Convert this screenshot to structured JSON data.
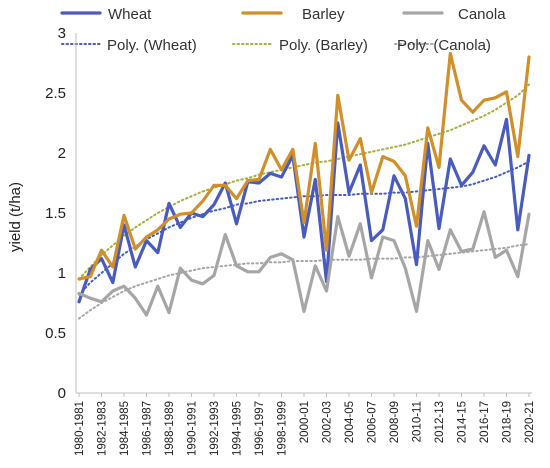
{
  "chart_data": {
    "type": "line",
    "title": "",
    "xlabel": "",
    "ylabel": "yield (t/ha)",
    "ylim": [
      0,
      3
    ],
    "yticks": [
      "0",
      "0.5",
      "1",
      "1.5",
      "2",
      "2.5",
      "3"
    ],
    "grid": false,
    "legend_position": "top",
    "x": [
      "1980-1981",
      "1981-1982",
      "1982-1983",
      "1983-1984",
      "1984-1985",
      "1985-1986",
      "1986-1987",
      "1987-1988",
      "1988-1989",
      "1989-1990",
      "1990-1991",
      "1991-1992",
      "1992-1993",
      "1993-1994",
      "1994-1995",
      "1995-1996",
      "1996-1997",
      "1997-1998",
      "1998-1999",
      "1999-2000",
      "2000-01",
      "2001-02",
      "2002-03",
      "2003-04",
      "2004-05",
      "2005-06",
      "2006-07",
      "2007-08",
      "2008-09",
      "2009-10",
      "2010-11",
      "2011-12",
      "2012-13",
      "2013-14",
      "2014-15",
      "2015-16",
      "2016-17",
      "2017-18",
      "2018-19",
      "2019-20",
      "2020-21"
    ],
    "xtick_labels": [
      "1980-1981",
      "1982-1983",
      "1984-1985",
      "1986-1987",
      "1988-1989",
      "1990-1991",
      "1992-1993",
      "1994-1995",
      "1996-1997",
      "1998-1999",
      "2000-01",
      "2002-03",
      "2004-05",
      "2006-07",
      "2008-09",
      "2010-11",
      "2012-13",
      "2014-15",
      "2016-17",
      "2018-19",
      "2020-21"
    ],
    "series": [
      {
        "name": "Wheat",
        "color": "#4a5bbf",
        "values": [
          0.76,
          1.03,
          1.12,
          0.92,
          1.4,
          1.05,
          1.27,
          1.17,
          1.58,
          1.38,
          1.5,
          1.47,
          1.57,
          1.75,
          1.41,
          1.76,
          1.75,
          1.83,
          1.8,
          1.98,
          1.3,
          1.78,
          0.93,
          2.25,
          1.67,
          1.9,
          1.27,
          1.36,
          1.81,
          1.62,
          1.07,
          2.08,
          1.37,
          1.95,
          1.73,
          1.84,
          2.06,
          1.9,
          2.28,
          1.36,
          1.98
        ]
      },
      {
        "name": "Barley",
        "color": "#d08f28",
        "values": [
          0.95,
          0.97,
          1.19,
          1.05,
          1.48,
          1.2,
          1.3,
          1.36,
          1.45,
          1.49,
          1.5,
          1.6,
          1.73,
          1.73,
          1.62,
          1.77,
          1.78,
          2.03,
          1.86,
          2.03,
          1.42,
          2.08,
          1.19,
          2.48,
          1.94,
          2.12,
          1.67,
          1.97,
          1.93,
          1.81,
          1.39,
          2.21,
          1.88,
          2.83,
          2.44,
          2.34,
          2.44,
          2.46,
          2.51,
          1.97,
          2.8
        ]
      },
      {
        "name": "Canola",
        "color": "#a6a6a6",
        "values": [
          0.83,
          0.79,
          0.76,
          0.85,
          0.89,
          0.79,
          0.65,
          0.89,
          0.67,
          1.04,
          0.94,
          0.91,
          0.98,
          1.32,
          1.06,
          1.01,
          1.01,
          1.13,
          1.16,
          1.11,
          0.68,
          1.06,
          0.85,
          1.47,
          1.14,
          1.41,
          0.96,
          1.3,
          1.27,
          1.04,
          0.68,
          1.27,
          1.03,
          1.36,
          1.18,
          1.2,
          1.51,
          1.13,
          1.19,
          0.97,
          1.49
        ]
      }
    ],
    "trendlines": [
      {
        "name": "Poly. (Wheat)",
        "color": "#4a5bbf",
        "values": [
          0.82,
          0.92,
          1.0,
          1.08,
          1.16,
          1.22,
          1.28,
          1.33,
          1.38,
          1.42,
          1.46,
          1.49,
          1.52,
          1.54,
          1.57,
          1.58,
          1.6,
          1.61,
          1.62,
          1.63,
          1.64,
          1.64,
          1.65,
          1.65,
          1.65,
          1.66,
          1.66,
          1.66,
          1.67,
          1.67,
          1.68,
          1.69,
          1.7,
          1.71,
          1.72,
          1.74,
          1.77,
          1.8,
          1.84,
          1.88,
          1.93
        ]
      },
      {
        "name": "Poly. (Barley)",
        "color": "#a8b03c",
        "values": [
          0.95,
          1.05,
          1.15,
          1.23,
          1.31,
          1.38,
          1.44,
          1.5,
          1.55,
          1.6,
          1.64,
          1.68,
          1.71,
          1.74,
          1.77,
          1.79,
          1.82,
          1.84,
          1.86,
          1.88,
          1.9,
          1.92,
          1.93,
          1.95,
          1.97,
          1.99,
          2.01,
          2.03,
          2.05,
          2.07,
          2.1,
          2.13,
          2.16,
          2.19,
          2.23,
          2.27,
          2.31,
          2.36,
          2.42,
          2.48,
          2.57
        ]
      },
      {
        "name": "Poly. (Canola)",
        "color": "#a6a6a6",
        "values": [
          0.62,
          0.69,
          0.75,
          0.8,
          0.85,
          0.89,
          0.92,
          0.95,
          0.98,
          1.0,
          1.02,
          1.04,
          1.05,
          1.06,
          1.07,
          1.08,
          1.08,
          1.09,
          1.09,
          1.1,
          1.1,
          1.1,
          1.11,
          1.11,
          1.11,
          1.11,
          1.12,
          1.12,
          1.12,
          1.13,
          1.13,
          1.14,
          1.15,
          1.16,
          1.17,
          1.18,
          1.19,
          1.2,
          1.21,
          1.23,
          1.24
        ]
      }
    ]
  }
}
